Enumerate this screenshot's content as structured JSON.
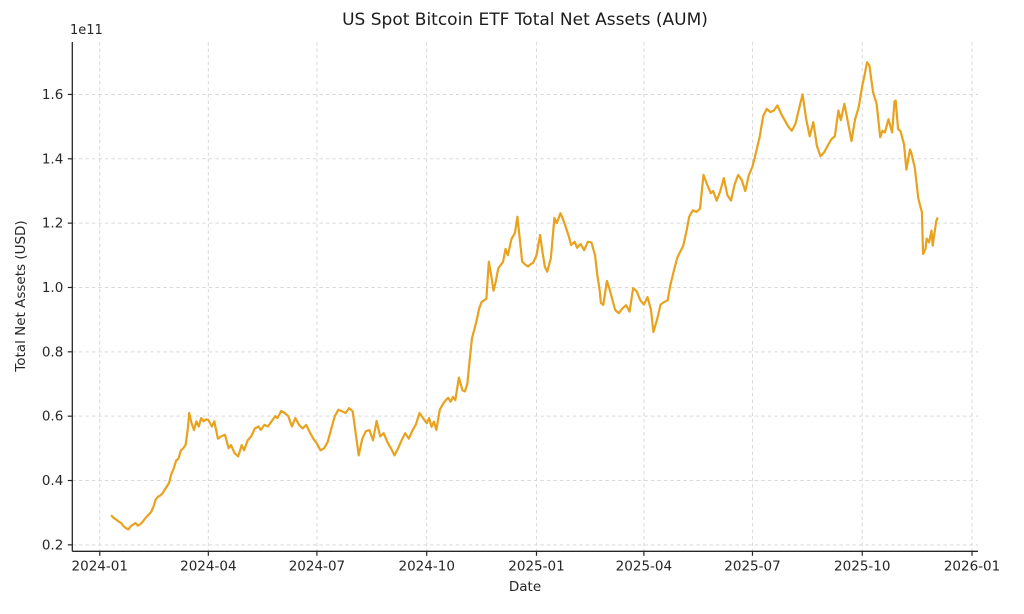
{
  "figure": {
    "background": "#ffffff"
  },
  "chart_data": {
    "type": "line",
    "title": "US Spot Bitcoin ETF Total Net Assets (AUM)",
    "xlabel": "Date",
    "ylabel": "Total Net Assets (USD)",
    "legend": "none",
    "grid": true,
    "grid_style": "dashed",
    "colors": {
      "line": "#E8A21E",
      "grid": "#d9d9d9",
      "spine": "#262626",
      "text": "#262626"
    },
    "x_axis": {
      "unit": "days since 2024-01-01",
      "lim": [
        -23,
        736
      ],
      "ticks": [
        0,
        91,
        182,
        274,
        366,
        456,
        547,
        639,
        731
      ],
      "tick_labels": [
        "2024-01",
        "2024-04",
        "2024-07",
        "2024-10",
        "2025-01",
        "2025-04",
        "2025-07",
        "2025-10",
        "2026-01"
      ]
    },
    "y_axis": {
      "unit_multiplier": 100000000000.0,
      "offset_label": "1e11",
      "lim": [
        0.18,
        1.763
      ],
      "ticks": [
        0.2,
        0.4,
        0.6,
        0.8,
        1.0,
        1.2,
        1.4,
        1.6
      ],
      "tick_labels": [
        "0.2",
        "0.4",
        "0.6",
        "0.8",
        "1.0",
        "1.2",
        "1.4",
        "1.6"
      ]
    },
    "series": [
      {
        "name": "US Spot Bitcoin ETF Total Net Assets",
        "points": [
          [
            10,
            0.29
          ],
          [
            12,
            0.283
          ],
          [
            14,
            0.278
          ],
          [
            16,
            0.272
          ],
          [
            18,
            0.268
          ],
          [
            20,
            0.258
          ],
          [
            22,
            0.252
          ],
          [
            24,
            0.248
          ],
          [
            26,
            0.258
          ],
          [
            28,
            0.263
          ],
          [
            30,
            0.268
          ],
          [
            32,
            0.26
          ],
          [
            34,
            0.264
          ],
          [
            36,
            0.272
          ],
          [
            38,
            0.282
          ],
          [
            40,
            0.29
          ],
          [
            43,
            0.302
          ],
          [
            45,
            0.318
          ],
          [
            47,
            0.342
          ],
          [
            49,
            0.35
          ],
          [
            51,
            0.354
          ],
          [
            53,
            0.362
          ],
          [
            55,
            0.375
          ],
          [
            58,
            0.392
          ],
          [
            60,
            0.42
          ],
          [
            62,
            0.437
          ],
          [
            64,
            0.462
          ],
          [
            66,
            0.468
          ],
          [
            68,
            0.494
          ],
          [
            70,
            0.5
          ],
          [
            72,
            0.512
          ],
          [
            74,
            0.565
          ],
          [
            75,
            0.61
          ],
          [
            77,
            0.578
          ],
          [
            79,
            0.557
          ],
          [
            81,
            0.584
          ],
          [
            83,
            0.568
          ],
          [
            85,
            0.594
          ],
          [
            87,
            0.584
          ],
          [
            89,
            0.59
          ],
          [
            91,
            0.588
          ],
          [
            94,
            0.568
          ],
          [
            96,
            0.584
          ],
          [
            99,
            0.53
          ],
          [
            102,
            0.538
          ],
          [
            105,
            0.542
          ],
          [
            108,
            0.5
          ],
          [
            110,
            0.51
          ],
          [
            113,
            0.485
          ],
          [
            116,
            0.475
          ],
          [
            119,
            0.51
          ],
          [
            121,
            0.494
          ],
          [
            124,
            0.525
          ],
          [
            127,
            0.538
          ],
          [
            130,
            0.562
          ],
          [
            133,
            0.568
          ],
          [
            135,
            0.557
          ],
          [
            138,
            0.573
          ],
          [
            141,
            0.568
          ],
          [
            144,
            0.584
          ],
          [
            147,
            0.6
          ],
          [
            149,
            0.594
          ],
          [
            152,
            0.616
          ],
          [
            155,
            0.61
          ],
          [
            158,
            0.6
          ],
          [
            161,
            0.568
          ],
          [
            164,
            0.594
          ],
          [
            167,
            0.573
          ],
          [
            170,
            0.562
          ],
          [
            173,
            0.573
          ],
          [
            176,
            0.55
          ],
          [
            179,
            0.53
          ],
          [
            182,
            0.515
          ],
          [
            185,
            0.494
          ],
          [
            188,
            0.5
          ],
          [
            191,
            0.52
          ],
          [
            194,
            0.56
          ],
          [
            197,
            0.6
          ],
          [
            200,
            0.62
          ],
          [
            203,
            0.615
          ],
          [
            206,
            0.61
          ],
          [
            209,
            0.625
          ],
          [
            212,
            0.615
          ],
          [
            214,
            0.56
          ],
          [
            217,
            0.478
          ],
          [
            220,
            0.53
          ],
          [
            223,
            0.553
          ],
          [
            226,
            0.557
          ],
          [
            229,
            0.525
          ],
          [
            232,
            0.585
          ],
          [
            235,
            0.537
          ],
          [
            238,
            0.547
          ],
          [
            241,
            0.52
          ],
          [
            244,
            0.5
          ],
          [
            247,
            0.478
          ],
          [
            250,
            0.5
          ],
          [
            253,
            0.525
          ],
          [
            256,
            0.547
          ],
          [
            259,
            0.53
          ],
          [
            262,
            0.555
          ],
          [
            265,
            0.575
          ],
          [
            268,
            0.61
          ],
          [
            271,
            0.594
          ],
          [
            274,
            0.578
          ],
          [
            276,
            0.594
          ],
          [
            278,
            0.567
          ],
          [
            280,
            0.583
          ],
          [
            282,
            0.557
          ],
          [
            285,
            0.62
          ],
          [
            288,
            0.64
          ],
          [
            290,
            0.65
          ],
          [
            292,
            0.657
          ],
          [
            294,
            0.645
          ],
          [
            296,
            0.66
          ],
          [
            298,
            0.65
          ],
          [
            301,
            0.72
          ],
          [
            304,
            0.68
          ],
          [
            306,
            0.677
          ],
          [
            308,
            0.7
          ],
          [
            310,
            0.775
          ],
          [
            312,
            0.843
          ],
          [
            314,
            0.87
          ],
          [
            316,
            0.9
          ],
          [
            318,
            0.935
          ],
          [
            320,
            0.955
          ],
          [
            322,
            0.96
          ],
          [
            324,
            0.965
          ],
          [
            326,
            1.08
          ],
          [
            328,
            1.04
          ],
          [
            330,
            0.99
          ],
          [
            332,
            1.02
          ],
          [
            334,
            1.06
          ],
          [
            336,
            1.07
          ],
          [
            338,
            1.08
          ],
          [
            340,
            1.12
          ],
          [
            342,
            1.1
          ],
          [
            345,
            1.15
          ],
          [
            348,
            1.17
          ],
          [
            350,
            1.22
          ],
          [
            352,
            1.15
          ],
          [
            354,
            1.08
          ],
          [
            357,
            1.07
          ],
          [
            359,
            1.065
          ],
          [
            361,
            1.072
          ],
          [
            363,
            1.076
          ],
          [
            366,
            1.1
          ],
          [
            369,
            1.163
          ],
          [
            371,
            1.11
          ],
          [
            373,
            1.065
          ],
          [
            375,
            1.049
          ],
          [
            378,
            1.09
          ],
          [
            381,
            1.216
          ],
          [
            383,
            1.2
          ],
          [
            386,
            1.231
          ],
          [
            388,
            1.215
          ],
          [
            390,
            1.194
          ],
          [
            393,
            1.16
          ],
          [
            395,
            1.132
          ],
          [
            398,
            1.142
          ],
          [
            400,
            1.123
          ],
          [
            403,
            1.135
          ],
          [
            406,
            1.116
          ],
          [
            409,
            1.142
          ],
          [
            412,
            1.14
          ],
          [
            415,
            1.101
          ],
          [
            417,
            1.039
          ],
          [
            419,
            0.99
          ],
          [
            420,
            0.952
          ],
          [
            422,
            0.946
          ],
          [
            425,
            1.02
          ],
          [
            427,
            0.998
          ],
          [
            430,
            0.956
          ],
          [
            432,
            0.93
          ],
          [
            435,
            0.92
          ],
          [
            438,
            0.935
          ],
          [
            441,
            0.945
          ],
          [
            444,
            0.925
          ],
          [
            447,
            0.998
          ],
          [
            450,
            0.988
          ],
          [
            453,
            0.96
          ],
          [
            456,
            0.947
          ],
          [
            459,
            0.97
          ],
          [
            462,
            0.93
          ],
          [
            464,
            0.862
          ],
          [
            467,
            0.9
          ],
          [
            470,
            0.947
          ],
          [
            473,
            0.955
          ],
          [
            476,
            0.96
          ],
          [
            478,
            1.004
          ],
          [
            481,
            1.05
          ],
          [
            484,
            1.093
          ],
          [
            486,
            1.108
          ],
          [
            489,
            1.13
          ],
          [
            492,
            1.18
          ],
          [
            494,
            1.22
          ],
          [
            497,
            1.24
          ],
          [
            500,
            1.235
          ],
          [
            503,
            1.245
          ],
          [
            506,
            1.35
          ],
          [
            509,
            1.32
          ],
          [
            512,
            1.293
          ],
          [
            514,
            1.3
          ],
          [
            517,
            1.27
          ],
          [
            520,
            1.3
          ],
          [
            523,
            1.34
          ],
          [
            526,
            1.287
          ],
          [
            529,
            1.27
          ],
          [
            532,
            1.32
          ],
          [
            535,
            1.35
          ],
          [
            538,
            1.334
          ],
          [
            541,
            1.3
          ],
          [
            544,
            1.35
          ],
          [
            547,
            1.376
          ],
          [
            550,
            1.42
          ],
          [
            553,
            1.467
          ],
          [
            556,
            1.533
          ],
          [
            559,
            1.555
          ],
          [
            562,
            1.545
          ],
          [
            565,
            1.55
          ],
          [
            568,
            1.566
          ],
          [
            571,
            1.54
          ],
          [
            574,
            1.52
          ],
          [
            577,
            1.5
          ],
          [
            580,
            1.487
          ],
          [
            583,
            1.508
          ],
          [
            586,
            1.555
          ],
          [
            589,
            1.6
          ],
          [
            592,
            1.523
          ],
          [
            595,
            1.47
          ],
          [
            598,
            1.514
          ],
          [
            601,
            1.44
          ],
          [
            604,
            1.408
          ],
          [
            607,
            1.42
          ],
          [
            610,
            1.44
          ],
          [
            613,
            1.46
          ],
          [
            616,
            1.47
          ],
          [
            619,
            1.55
          ],
          [
            621,
            1.52
          ],
          [
            624,
            1.571
          ],
          [
            627,
            1.514
          ],
          [
            630,
            1.455
          ],
          [
            633,
            1.523
          ],
          [
            636,
            1.56
          ],
          [
            639,
            1.628
          ],
          [
            641,
            1.66
          ],
          [
            643,
            1.7
          ],
          [
            645,
            1.69
          ],
          [
            648,
            1.608
          ],
          [
            651,
            1.571
          ],
          [
            654,
            1.467
          ],
          [
            656,
            1.487
          ],
          [
            658,
            1.482
          ],
          [
            661,
            1.523
          ],
          [
            664,
            1.482
          ],
          [
            666,
            1.578
          ],
          [
            667,
            1.581
          ],
          [
            669,
            1.492
          ],
          [
            671,
            1.487
          ],
          [
            674,
            1.445
          ],
          [
            676,
            1.366
          ],
          [
            679,
            1.429
          ],
          [
            680,
            1.42
          ],
          [
            683,
            1.372
          ],
          [
            686,
            1.277
          ],
          [
            687,
            1.262
          ],
          [
            689,
            1.234
          ],
          [
            690,
            1.104
          ],
          [
            692,
            1.12
          ],
          [
            693,
            1.152
          ],
          [
            695,
            1.14
          ],
          [
            697,
            1.177
          ],
          [
            698,
            1.13
          ],
          [
            701,
            1.206
          ],
          [
            702,
            1.215
          ]
        ]
      }
    ]
  }
}
